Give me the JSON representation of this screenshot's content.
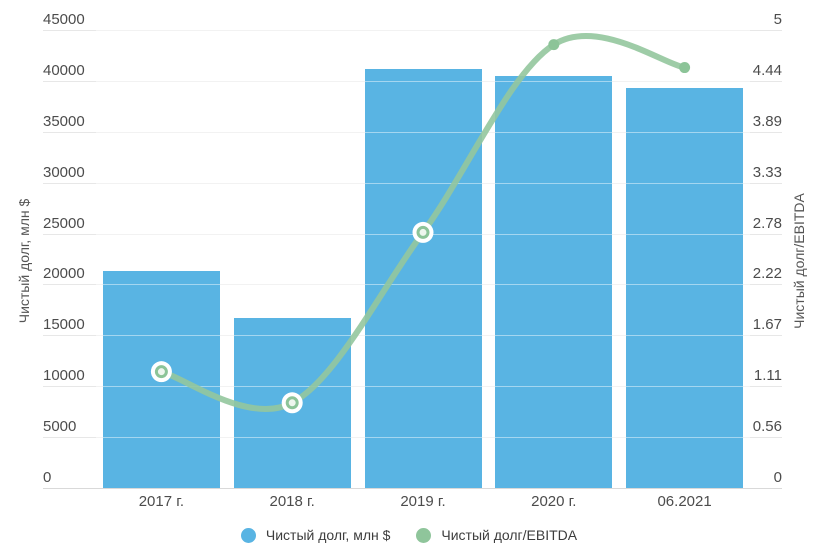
{
  "chart_data": {
    "type": "bar",
    "subtype": "combo-bar-line-dual-axis",
    "categories": [
      "2017 г.",
      "2018 г.",
      "2019 г.",
      "2020 г.",
      "06.2021"
    ],
    "series": [
      {
        "name": "Чистый долг, млн $",
        "type": "bar",
        "axis": "left",
        "color": "#59b4e3",
        "values": [
          21300,
          16700,
          41200,
          40500,
          39300
        ]
      },
      {
        "name": "Чистый долг/EBITDA",
        "type": "line",
        "axis": "right",
        "color": "#8fc59b",
        "values": [
          1.27,
          0.93,
          2.79,
          4.84,
          4.59
        ],
        "marker_styles": [
          "open",
          "open",
          "open",
          "solid",
          "solid"
        ]
      }
    ],
    "left_axis": {
      "title": "Чистый долг, млн $",
      "min": 0,
      "max": 45000,
      "tick_labels": [
        "0",
        "5000",
        "10000",
        "15000",
        "20000",
        "25000",
        "30000",
        "35000",
        "40000",
        "45000"
      ]
    },
    "right_axis": {
      "title": "Чистый долг/EBITDA",
      "min": 0,
      "max": 5,
      "tick_labels": [
        "0",
        "0.56",
        "1.11",
        "1.67",
        "2.22",
        "2.78",
        "3.33",
        "3.89",
        "4.44",
        "5"
      ]
    },
    "legend": [
      {
        "label": "Чистый долг, млн $",
        "color": "#59b4e3"
      },
      {
        "label": "Чистый долг/EBITDA",
        "color": "#8fc59b"
      }
    ],
    "grid": true,
    "legend_position": "bottom",
    "background": "#ffffff"
  },
  "colors": {
    "bar": "#59b4e3",
    "line": "#93c69d",
    "marker_open_fill": "#eef6ee",
    "marker_stroke": "#8cc498",
    "grid": "#e7e7e7",
    "axis_text": "#4c4c4c"
  }
}
